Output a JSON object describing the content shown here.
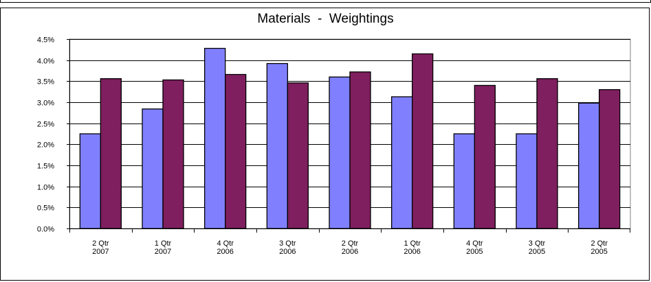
{
  "chart_data": {
    "type": "bar",
    "title": "Materials  -  Weightings",
    "xlabel": "",
    "ylabel": "",
    "categories": [
      [
        "2 Qtr",
        "2007"
      ],
      [
        "1 Qtr",
        "2007"
      ],
      [
        "4 Qtr",
        "2006"
      ],
      [
        "3 Qtr",
        "2006"
      ],
      [
        "2 Qtr",
        "2006"
      ],
      [
        "1 Qtr",
        "2006"
      ],
      [
        "4 Qtr",
        "2005"
      ],
      [
        "3 Qtr",
        "2005"
      ],
      [
        "2 Qtr",
        "2005"
      ]
    ],
    "series": [
      {
        "values": [
          2.25,
          2.84,
          4.28,
          3.92,
          3.6,
          3.13,
          2.25,
          2.25,
          2.98
        ],
        "color": "#8080ff"
      },
      {
        "values": [
          3.56,
          3.53,
          3.66,
          3.46,
          3.72,
          4.15,
          3.4,
          3.56,
          3.3
        ],
        "color": "#7f1f5f"
      }
    ],
    "ylim": [
      0,
      4.5
    ],
    "yticks": [
      0,
      0.5,
      1.0,
      1.5,
      2.0,
      2.5,
      3.0,
      3.5,
      4.0,
      4.5
    ],
    "ytick_labels": [
      "0.0%",
      "0.5%",
      "1.0%",
      "1.5%",
      "2.0%",
      "2.5%",
      "3.0%",
      "3.5%",
      "4.0%",
      "4.5%"
    ],
    "grid": true,
    "legend": "none"
  }
}
